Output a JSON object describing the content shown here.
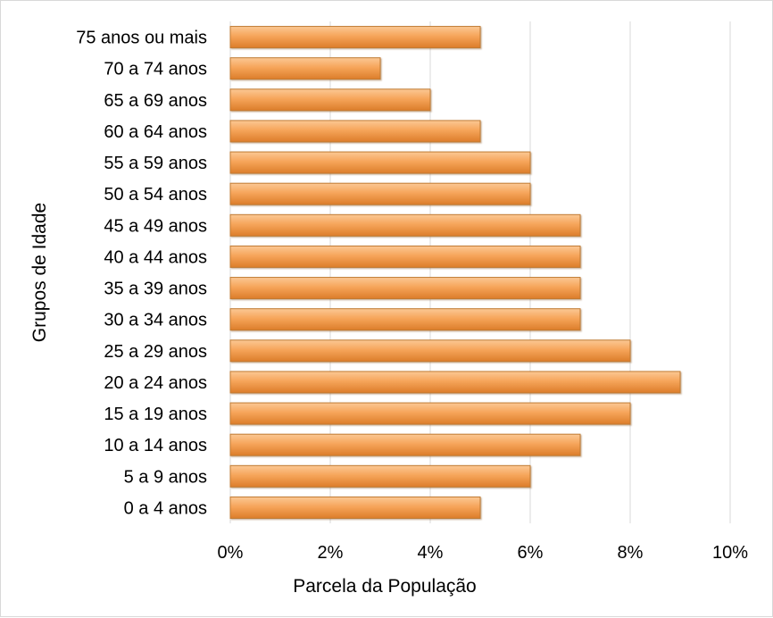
{
  "chart_data": {
    "type": "bar",
    "orientation": "horizontal",
    "categories": [
      "0 a 4 anos",
      "5 a 9 anos",
      "10 a 14 anos",
      "15 a 19 anos",
      "20 a 24 anos",
      "25 a 29 anos",
      "30 a 34 anos",
      "35 a 39 anos",
      "40 a 44 anos",
      "45 a 49 anos",
      "50 a 54 anos",
      "55 a 59 anos",
      "60 a 64 anos",
      "65 a 69 anos",
      "70 a 74 anos",
      "75 anos ou mais"
    ],
    "values": [
      5,
      6,
      7,
      8,
      9,
      8,
      7,
      7,
      7,
      7,
      6,
      6,
      5,
      4,
      3,
      5
    ],
    "xlabel": "Parcela da População",
    "ylabel": "Grupos de Idade",
    "xlim": [
      0,
      10
    ],
    "x_ticks": [
      "0%",
      "2%",
      "4%",
      "6%",
      "8%",
      "10%"
    ],
    "x_tick_values": [
      0,
      2,
      4,
      6,
      8,
      10
    ],
    "grid": "vertical",
    "bar_color": "#f6a55a",
    "bar_border": "#c07a33"
  }
}
